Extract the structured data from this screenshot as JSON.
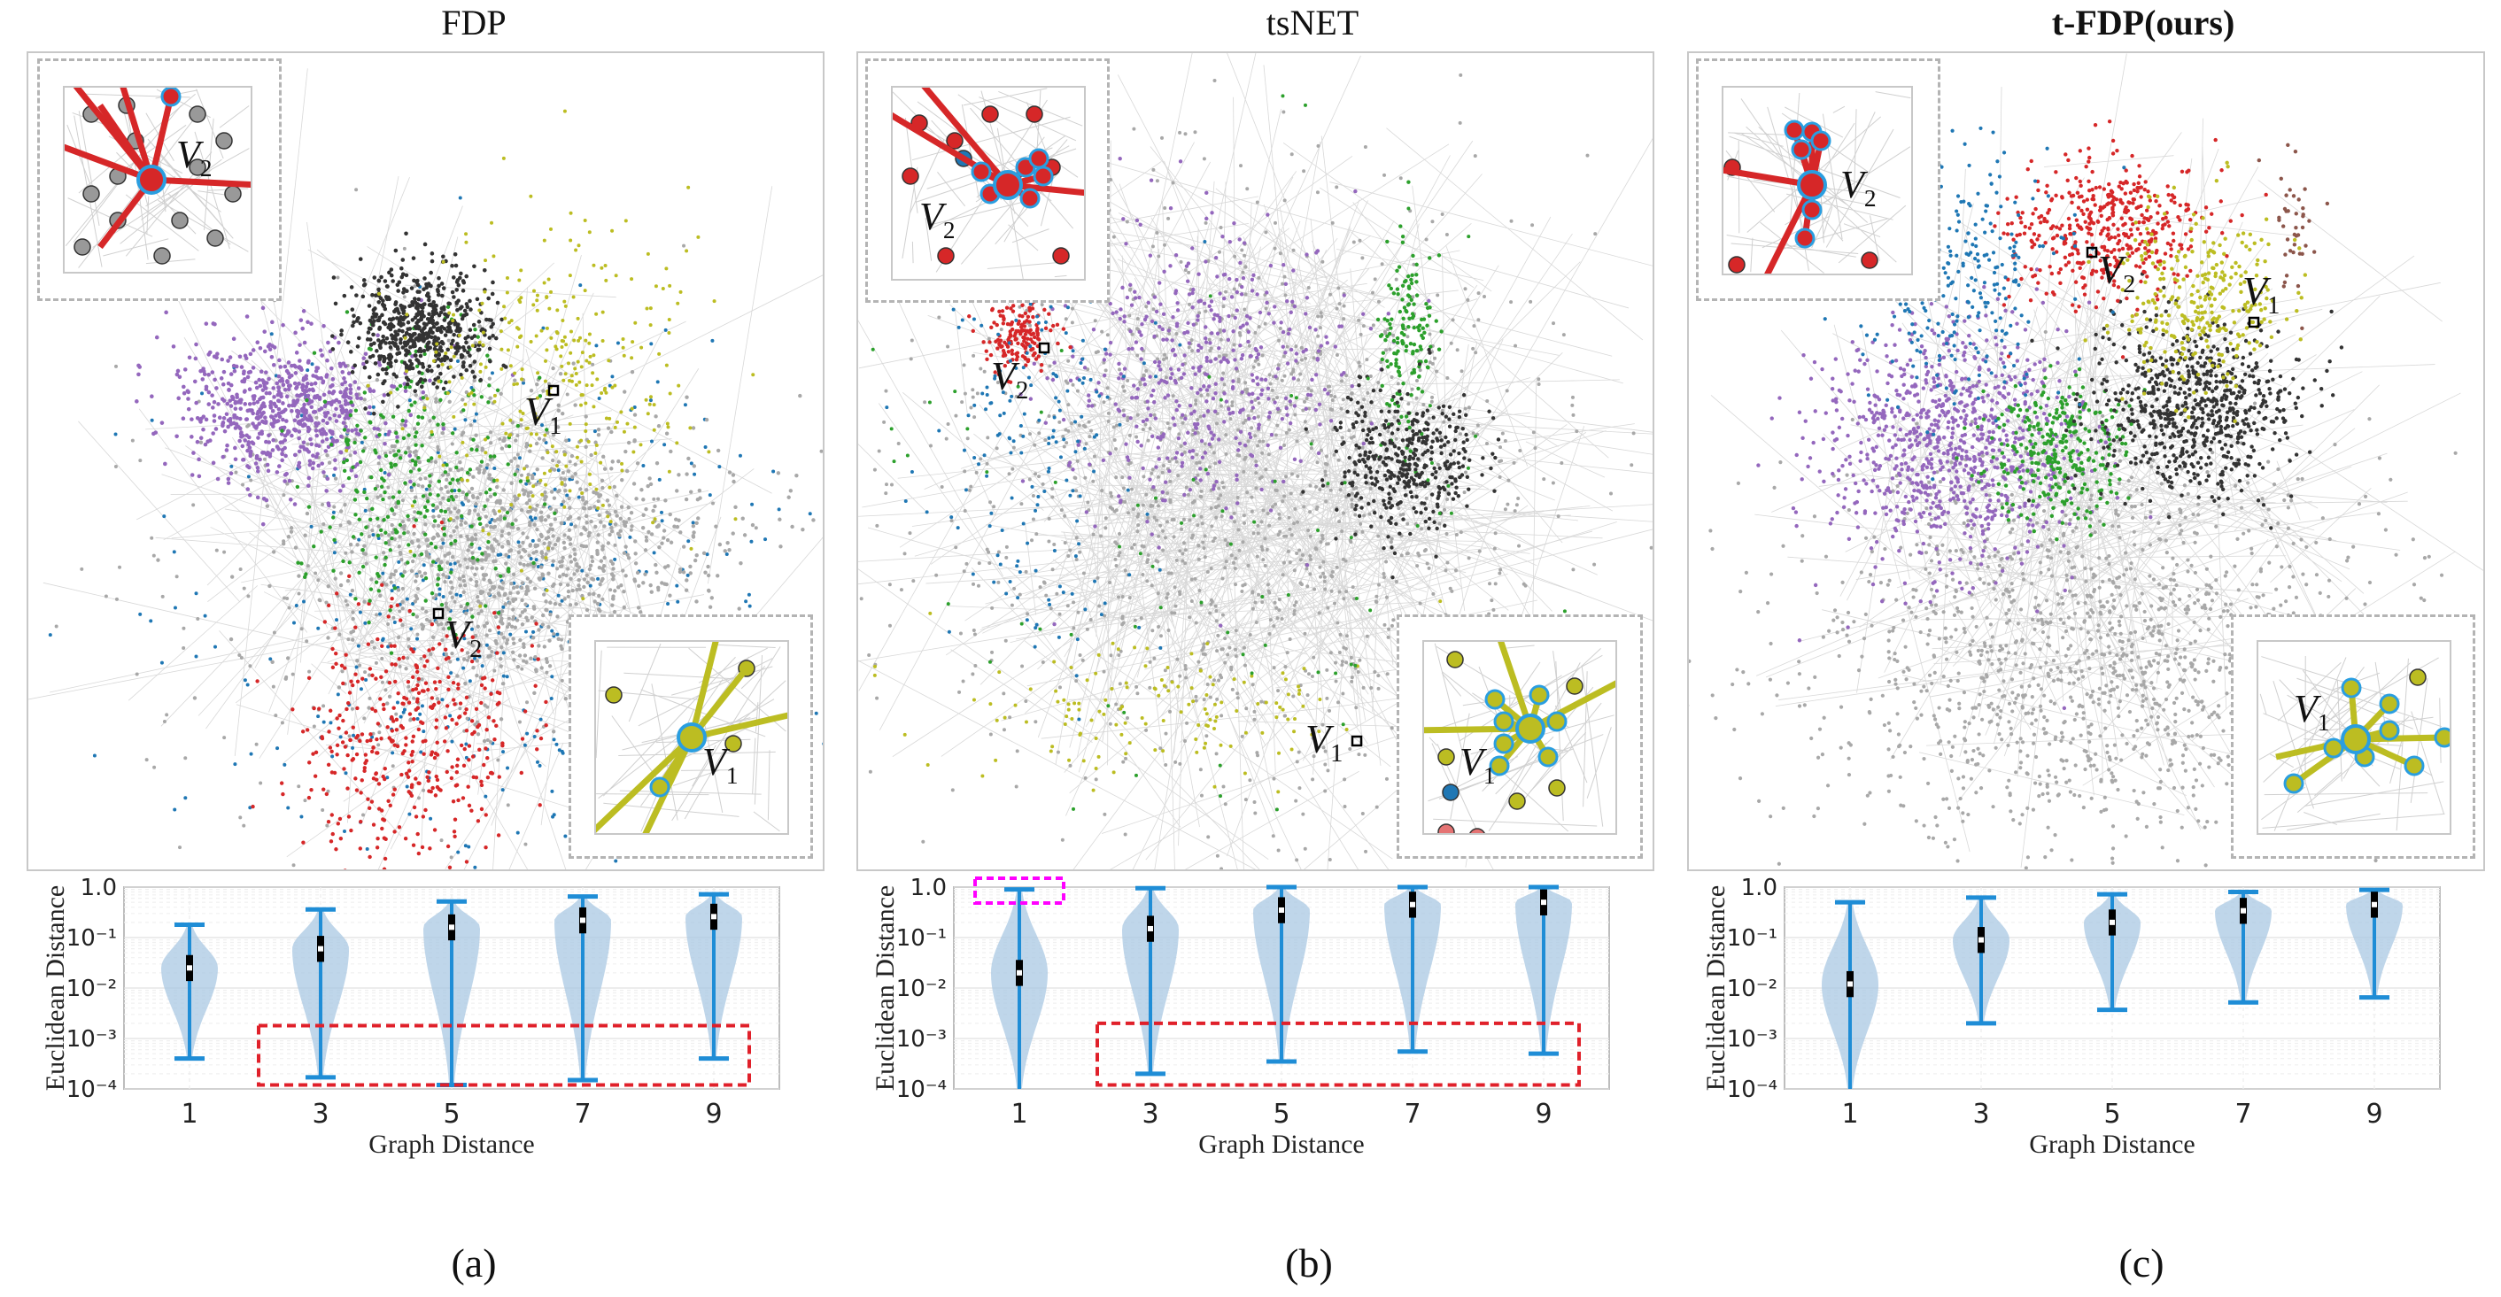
{
  "panels": [
    {
      "title": "FDP",
      "bold": false,
      "caption": "(a)",
      "node_label_1": "V",
      "node_label_1_sub": "1",
      "node_label_2": "V",
      "node_label_2_sub": "2"
    },
    {
      "title": "tsNET",
      "bold": false,
      "caption": "(b)",
      "node_label_1": "V",
      "node_label_1_sub": "1",
      "node_label_2": "V",
      "node_label_2_sub": "2"
    },
    {
      "title": "t-FDP(ours)",
      "bold": true,
      "caption": "(c)",
      "node_label_1": "V",
      "node_label_1_sub": "1",
      "node_label_2": "V",
      "node_label_2_sub": "2"
    }
  ],
  "colors": {
    "purple": "#9467bd",
    "black": "#333333",
    "green": "#2ca02c",
    "olive": "#bcbd22",
    "gray": "#a8a8a8",
    "red": "#d62728",
    "blue": "#1f77b4",
    "brown": "#8c564b",
    "violin_fill": "#a9c8e3",
    "violin_line": "#1f8dd6",
    "highlight_red": "#e0202a",
    "highlight_magenta": "#ff00ff"
  },
  "chart_data": [
    {
      "type": "violin",
      "title": "FDP",
      "xlabel": "Graph  Distance",
      "ylabel": "Euclidean  Distance",
      "yscale": "log",
      "ylim": [
        0.0001,
        1.0
      ],
      "yticks": [
        "10⁻⁴",
        "10⁻³",
        "10⁻²",
        "10⁻¹",
        "1.0"
      ],
      "categories": [
        "1",
        "3",
        "5",
        "7",
        "9"
      ],
      "min": [
        0.0004,
        0.00017,
        0.00012,
        0.00015,
        0.0004
      ],
      "max": [
        0.18,
        0.36,
        0.52,
        0.65,
        0.72
      ],
      "median": [
        0.025,
        0.06,
        0.16,
        0.22,
        0.26
      ],
      "annotation": "red dashed box over graph distances 3-9 near 10⁻³"
    },
    {
      "type": "violin",
      "title": "tsNET",
      "xlabel": "Graph  Distance",
      "ylabel": "Euclidean  Distance",
      "yscale": "log",
      "ylim": [
        0.0001,
        1.0
      ],
      "yticks": [
        "10⁻⁴",
        "10⁻³",
        "10⁻²",
        "10⁻¹",
        "1.0"
      ],
      "categories": [
        "1",
        "3",
        "5",
        "7",
        "9"
      ],
      "min": [
        0.0001,
        0.0002,
        0.00035,
        0.00055,
        0.0005
      ],
      "max": [
        0.9,
        0.95,
        1.0,
        1.0,
        1.0
      ],
      "median": [
        0.02,
        0.15,
        0.35,
        0.45,
        0.5
      ],
      "annotation": "magenta dashed box at top of distance 1; red dashed box over distances 3-9 near 10⁻³"
    },
    {
      "type": "violin",
      "title": "t-FDP(ours)",
      "xlabel": "Graph  Distance",
      "ylabel": "Euclidean  Distance",
      "yscale": "log",
      "ylim": [
        0.0001,
        1.0
      ],
      "yticks": [
        "10⁻⁴",
        "10⁻³",
        "10⁻²",
        "10⁻¹",
        "1.0"
      ],
      "categories": [
        "1",
        "3",
        "5",
        "7",
        "9"
      ],
      "min": [
        0.0001,
        0.002,
        0.0037,
        0.0052,
        0.0065
      ],
      "max": [
        0.5,
        0.62,
        0.72,
        0.8,
        0.88
      ],
      "median": [
        0.012,
        0.09,
        0.2,
        0.34,
        0.45
      ]
    }
  ]
}
